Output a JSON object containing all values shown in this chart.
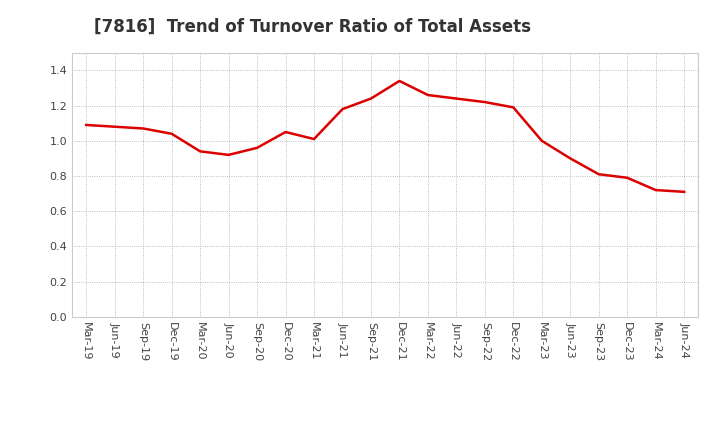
{
  "title": "[7816]  Trend of Turnover Ratio of Total Assets",
  "x_labels": [
    "Mar-19",
    "Jun-19",
    "Sep-19",
    "Dec-19",
    "Mar-20",
    "Jun-20",
    "Sep-20",
    "Dec-20",
    "Mar-21",
    "Jun-21",
    "Sep-21",
    "Dec-21",
    "Mar-22",
    "Jun-22",
    "Sep-22",
    "Dec-22",
    "Mar-23",
    "Jun-23",
    "Sep-23",
    "Dec-23",
    "Mar-24",
    "Jun-24"
  ],
  "y_values": [
    1.09,
    1.08,
    1.07,
    1.04,
    0.94,
    0.92,
    0.96,
    1.05,
    1.01,
    1.18,
    1.24,
    1.34,
    1.26,
    1.24,
    1.22,
    1.19,
    1.0,
    0.9,
    0.81,
    0.79,
    0.72,
    0.71
  ],
  "line_color": "#dd0000",
  "line_width": 1.8,
  "ylim": [
    0.0,
    1.5
  ],
  "yticks": [
    0.0,
    0.2,
    0.4,
    0.6,
    0.8,
    1.0,
    1.2,
    1.4
  ],
  "background_color": "#ffffff",
  "plot_area_color": "#ffffff",
  "grid_color": "#aaaaaa",
  "title_fontsize": 12,
  "tick_fontsize": 8,
  "title_color": "#333333"
}
